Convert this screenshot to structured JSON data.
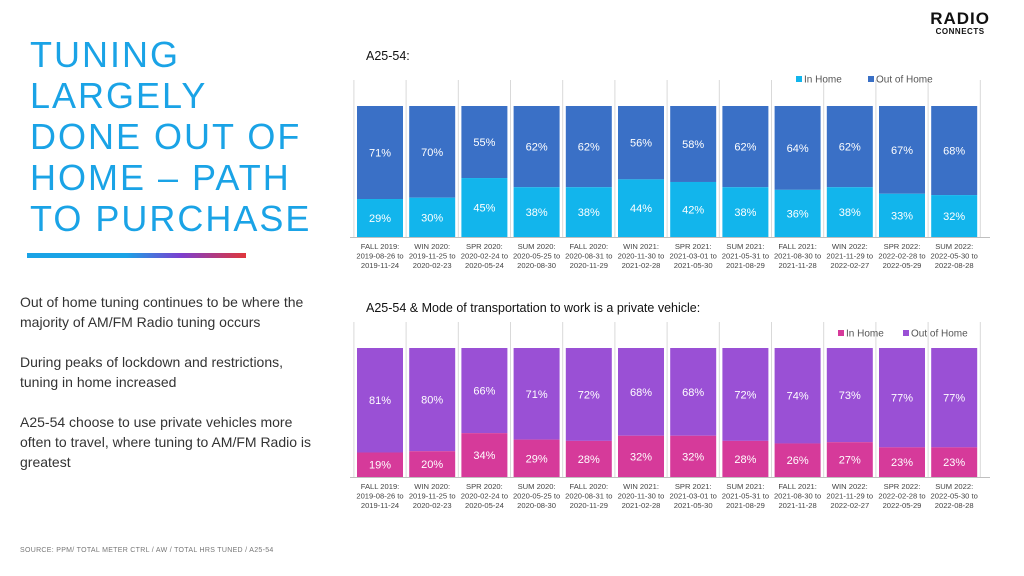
{
  "logo": {
    "line1": "RADIO",
    "line2": "CONNECTS"
  },
  "headline": [
    "TUNING",
    "LARGELY",
    "DONE OUT OF",
    "HOME – PATH",
    "TO PURCHASE"
  ],
  "body": [
    "Out of home tuning continues to be where the majority of AM/FM Radio tuning occurs",
    "During peaks of lockdown and restrictions, tuning in home increased",
    "A25-54 choose to use private vehicles more often to travel, where tuning to AM/FM Radio is greatest"
  ],
  "source": "SOURCE: PPM/ TOTAL METER CTRL / AW / TOTAL HRS TUNED / A25-54",
  "colors": {
    "headline": "#1aa3e6",
    "chart1_in": "#12b5ec",
    "chart1_out": "#3a70c6",
    "chart2_in": "#d63a9a",
    "chart2_out": "#9a50d5"
  },
  "chart_data": [
    {
      "type": "bar",
      "stacked": true,
      "title": "A25-54:",
      "legend_position": "top-right",
      "categories": [
        [
          "FALL 2019:",
          "2019-08-26 to",
          "2019-11-24"
        ],
        [
          "WIN 2020:",
          "2019-11-25 to",
          "2020-02-23"
        ],
        [
          "SPR 2020:",
          "2020-02-24 to",
          "2020-05-24"
        ],
        [
          "SUM 2020:",
          "2020-05-25 to",
          "2020-08-30"
        ],
        [
          "FALL 2020:",
          "2020-08-31 to",
          "2020-11-29"
        ],
        [
          "WIN 2021:",
          "2020-11-30 to",
          "2021-02-28"
        ],
        [
          "SPR 2021:",
          "2021-03-01 to",
          "2021-05-30"
        ],
        [
          "SUM 2021:",
          "2021-05-31 to",
          "2021-08-29"
        ],
        [
          "FALL 2021:",
          "2021-08-30 to",
          "2021-11-28"
        ],
        [
          "WIN 2022:",
          "2021-11-29 to",
          "2022-02-27"
        ],
        [
          "SPR 2022:",
          "2022-02-28 to",
          "2022-05-29"
        ],
        [
          "SUM 2022:",
          "2022-05-30 to",
          "2022-08-28"
        ]
      ],
      "series": [
        {
          "name": "In Home",
          "values": [
            29,
            30,
            45,
            38,
            38,
            44,
            42,
            38,
            36,
            38,
            33,
            32
          ]
        },
        {
          "name": "Out of Home",
          "values": [
            71,
            70,
            55,
            62,
            62,
            56,
            58,
            62,
            64,
            62,
            67,
            68
          ]
        }
      ],
      "ylim": [
        0,
        100
      ]
    },
    {
      "type": "bar",
      "stacked": true,
      "title": "A25-54 & Mode of transportation to work is a private vehicle:",
      "legend_position": "top-right",
      "categories": [
        [
          "FALL 2019:",
          "2019-08-26 to",
          "2019-11-24"
        ],
        [
          "WIN 2020:",
          "2019-11-25 to",
          "2020-02-23"
        ],
        [
          "SPR 2020:",
          "2020-02-24 to",
          "2020-05-24"
        ],
        [
          "SUM 2020:",
          "2020-05-25 to",
          "2020-08-30"
        ],
        [
          "FALL 2020:",
          "2020-08-31 to",
          "2020-11-29"
        ],
        [
          "WIN 2021:",
          "2020-11-30 to",
          "2021-02-28"
        ],
        [
          "SPR 2021:",
          "2021-03-01 to",
          "2021-05-30"
        ],
        [
          "SUM 2021:",
          "2021-05-31 to",
          "2021-08-29"
        ],
        [
          "FALL 2021:",
          "2021-08-30 to",
          "2021-11-28"
        ],
        [
          "WIN 2022:",
          "2021-11-29 to",
          "2022-02-27"
        ],
        [
          "SPR 2022:",
          "2022-02-28 to",
          "2022-05-29"
        ],
        [
          "SUM 2022:",
          "2022-05-30 to",
          "2022-08-28"
        ]
      ],
      "series": [
        {
          "name": "In Home",
          "values": [
            19,
            20,
            34,
            29,
            28,
            32,
            32,
            28,
            26,
            27,
            23,
            23
          ]
        },
        {
          "name": "Out of Home",
          "values": [
            81,
            80,
            66,
            71,
            72,
            68,
            68,
            72,
            74,
            73,
            77,
            77
          ]
        }
      ],
      "ylim": [
        0,
        100
      ]
    }
  ]
}
